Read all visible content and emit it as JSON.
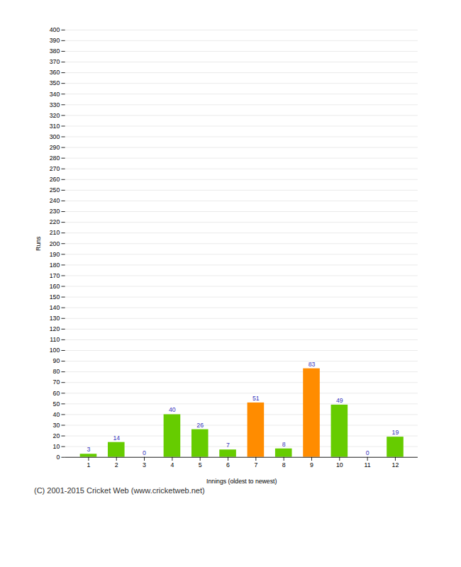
{
  "chart_data": {
    "type": "bar",
    "categories": [
      "1",
      "2",
      "3",
      "4",
      "5",
      "6",
      "7",
      "8",
      "9",
      "10",
      "11",
      "12"
    ],
    "values": [
      3,
      14,
      0,
      40,
      26,
      7,
      51,
      8,
      83,
      49,
      0,
      19
    ],
    "colors": [
      "#66cc00",
      "#66cc00",
      "#66cc00",
      "#66cc00",
      "#66cc00",
      "#66cc00",
      "#ff8c00",
      "#66cc00",
      "#ff8c00",
      "#66cc00",
      "#66cc00",
      "#66cc00"
    ],
    "xlabel": "Innings (oldest to newest)",
    "ylabel": "Runs",
    "ylim": [
      0,
      400
    ],
    "yticks": [
      0,
      10,
      20,
      30,
      40,
      50,
      60,
      70,
      80,
      90,
      100,
      110,
      120,
      130,
      140,
      150,
      160,
      170,
      180,
      190,
      200,
      210,
      220,
      230,
      240,
      250,
      260,
      270,
      280,
      290,
      300,
      310,
      320,
      330,
      340,
      350,
      360,
      370,
      380,
      390,
      400
    ],
    "grid": true,
    "data_labels": true,
    "annotations": [
      "(C) 2001-2015 Cricket Web (www.cricketweb.net)"
    ]
  }
}
